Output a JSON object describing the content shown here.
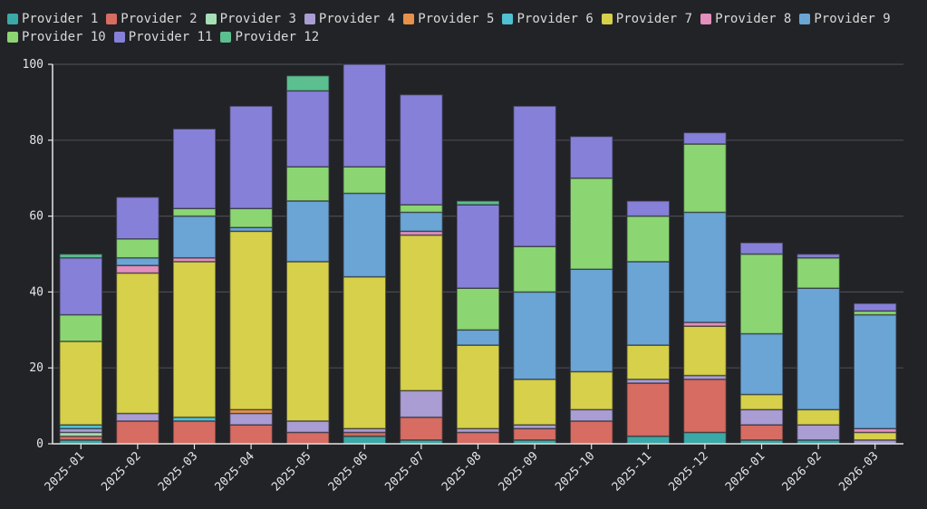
{
  "chart_data": {
    "type": "bar",
    "stacked": true,
    "title": "",
    "xlabel": "",
    "ylabel": "",
    "ylim": [
      0,
      100
    ],
    "yticks": [
      "0",
      "20",
      "40",
      "60",
      "80",
      "100"
    ],
    "grid": true,
    "legend_position": "top",
    "categories": [
      "2025-01",
      "2025-02",
      "2025-03",
      "2025-04",
      "2025-05",
      "2025-06",
      "2025-07",
      "2025-08",
      "2025-09",
      "2025-10",
      "2025-11",
      "2025-12",
      "2026-01",
      "2026-02",
      "2026-03"
    ],
    "series": [
      {
        "name": "Provider 1",
        "color": "#3aa9a8",
        "values": [
          1,
          0,
          0,
          0,
          0,
          2,
          1,
          0,
          1,
          0,
          2,
          3,
          1,
          1,
          0
        ]
      },
      {
        "name": "Provider 2",
        "color": "#d66c62",
        "values": [
          1,
          6,
          6,
          5,
          3,
          1,
          6,
          3,
          3,
          6,
          14,
          14,
          4,
          0,
          0
        ]
      },
      {
        "name": "Provider 3",
        "color": "#a6dfb6",
        "values": [
          1,
          0,
          0,
          0,
          0,
          0,
          0,
          0,
          0,
          0,
          0,
          0,
          0,
          0,
          0
        ]
      },
      {
        "name": "Provider 4",
        "color": "#a99dd4",
        "values": [
          1,
          2,
          0,
          3,
          3,
          1,
          7,
          1,
          1,
          3,
          1,
          1,
          4,
          4,
          1
        ]
      },
      {
        "name": "Provider 5",
        "color": "#e8914a",
        "values": [
          0,
          0,
          0,
          1,
          0,
          0,
          0,
          0,
          0,
          0,
          0,
          0,
          0,
          0,
          0
        ]
      },
      {
        "name": "Provider 6",
        "color": "#4fc1d2",
        "values": [
          1,
          0,
          1,
          0,
          0,
          0,
          0,
          0,
          0,
          0,
          0,
          0,
          0,
          0,
          0
        ]
      },
      {
        "name": "Provider 7",
        "color": "#d6d04a",
        "values": [
          22,
          37,
          41,
          47,
          42,
          40,
          41,
          22,
          12,
          10,
          9,
          13,
          4,
          4,
          2
        ]
      },
      {
        "name": "Provider 8",
        "color": "#e38fbd",
        "values": [
          0,
          2,
          1,
          0,
          0,
          0,
          1,
          0,
          0,
          0,
          0,
          1,
          0,
          0,
          1
        ]
      },
      {
        "name": "Provider 9",
        "color": "#6aa5d6",
        "values": [
          0,
          2,
          11,
          1,
          16,
          22,
          5,
          4,
          23,
          27,
          22,
          29,
          16,
          32,
          30
        ]
      },
      {
        "name": "Provider 10",
        "color": "#8bd672",
        "values": [
          7,
          5,
          2,
          5,
          9,
          7,
          2,
          11,
          12,
          24,
          12,
          18,
          21,
          8,
          1
        ]
      },
      {
        "name": "Provider 11",
        "color": "#8780d9",
        "values": [
          15,
          11,
          21,
          27,
          20,
          27,
          29,
          22,
          37,
          11,
          4,
          3,
          3,
          1,
          2
        ]
      },
      {
        "name": "Provider 12",
        "color": "#5bbf8f",
        "values": [
          1,
          0,
          0,
          0,
          4,
          0,
          0,
          1,
          0,
          0,
          0,
          0,
          0,
          0,
          0
        ]
      }
    ]
  }
}
